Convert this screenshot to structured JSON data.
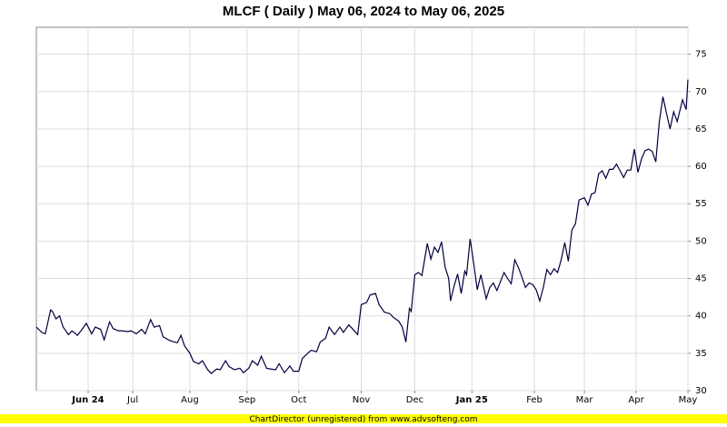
{
  "chart_data": {
    "type": "line",
    "title": "MLCF ( Daily ) May 06, 2024 to May 06, 2025",
    "footer": "ChartDirector (unregistered) from www.advsofteng.com",
    "color": "#000040",
    "grid": true,
    "x": [
      0,
      3,
      5,
      8,
      9,
      11,
      13,
      15,
      18,
      20,
      23,
      25,
      28,
      31,
      33,
      36,
      38,
      41,
      43,
      46,
      48,
      51,
      53,
      56,
      59,
      61,
      64,
      66,
      69,
      71,
      74,
      76,
      79,
      81,
      83,
      86,
      88,
      91,
      93,
      96,
      98,
      101,
      103,
      106,
      108,
      111,
      114,
      116,
      119,
      121,
      124,
      126,
      129,
      131,
      134,
      136,
      139,
      142,
      144,
      147,
      149,
      152,
      154,
      157,
      159,
      162,
      164,
      167,
      170,
      172,
      175,
      177,
      180,
      182,
      185,
      187,
      190,
      192,
      195,
      198,
      200,
      203,
      205,
      207,
      209,
      210,
      212,
      214,
      216,
      219,
      221,
      223,
      225,
      227,
      229,
      231,
      232,
      234,
      236,
      238,
      240,
      241,
      243,
      245,
      247,
      249,
      252,
      254,
      256,
      258,
      260,
      262,
      264,
      266,
      268,
      270,
      272,
      274,
      276,
      278,
      280,
      282,
      284,
      286,
      288,
      290,
      292,
      294,
      296,
      298,
      300,
      302,
      304,
      307,
      309,
      311,
      313,
      315,
      317,
      319,
      321,
      323,
      325,
      327,
      329,
      331,
      333,
      335,
      337,
      339,
      341,
      343,
      345,
      347,
      349,
      351,
      353,
      355,
      357,
      359,
      362,
      364,
      365
    ],
    "values": [
      38.5,
      37.8,
      37.6,
      40.8,
      40.6,
      39.6,
      40,
      38.5,
      37.5,
      38,
      37.4,
      38,
      39,
      37.6,
      38.5,
      38.2,
      36.8,
      39.2,
      38.3,
      38,
      38,
      37.9,
      38,
      37.6,
      38.2,
      37.6,
      39.5,
      38.5,
      38.7,
      37.2,
      36.8,
      36.6,
      36.4,
      37.4,
      36,
      35,
      33.9,
      33.6,
      34,
      32.8,
      32.3,
      32.9,
      32.8,
      34,
      33.2,
      32.8,
      33,
      32.4,
      33,
      34,
      33.4,
      34.6,
      33,
      32.9,
      32.8,
      33.6,
      32.4,
      33.3,
      32.6,
      32.6,
      34.3,
      35,
      35.4,
      35.2,
      36.5,
      37,
      38.5,
      37.5,
      38.5,
      37.8,
      38.8,
      38.3,
      37.5,
      41.5,
      41.8,
      42.8,
      43,
      41.5,
      40.5,
      40.3,
      39.8,
      39.3,
      38.5,
      36.5,
      41,
      40.6,
      45.5,
      45.8,
      45.4,
      49.7,
      47.6,
      49.2,
      48.5,
      49.9,
      46.5,
      45,
      42,
      44,
      45.6,
      43,
      46,
      45.5,
      50.3,
      47,
      43.5,
      45.5,
      42.3,
      43.8,
      44.4,
      43.4,
      44.6,
      45.8,
      45,
      44.3,
      47.5,
      46.5,
      45.2,
      43.8,
      44.4,
      44.2,
      43.5,
      42,
      43.8,
      46.2,
      45.5,
      46.3,
      45.8,
      47.5,
      49.8,
      47.3,
      51.5,
      52.3,
      55.5,
      55.8,
      54.8,
      56.3,
      56.5,
      59,
      59.4,
      58.4,
      59.6,
      59.6,
      60.3,
      59.4,
      58.5,
      59.5,
      59.5,
      62.3,
      59.2,
      61,
      62.1,
      62.3,
      62,
      60.6,
      66,
      69.3,
      67.1,
      65,
      67.3,
      66,
      68.9,
      67.6,
      71.6
    ],
    "xlim": [
      0,
      365
    ],
    "xticks": [
      {
        "value": 29,
        "label": "Jun 24"
      },
      {
        "value": 54,
        "label": "Jul"
      },
      {
        "value": 86,
        "label": "Aug"
      },
      {
        "value": 118,
        "label": "Sep"
      },
      {
        "value": 147,
        "label": "Oct"
      },
      {
        "value": 182,
        "label": "Nov"
      },
      {
        "value": 212,
        "label": "Dec"
      },
      {
        "value": 244,
        "label": "Jan 25"
      },
      {
        "value": 279,
        "label": "Feb"
      },
      {
        "value": 307,
        "label": "Mar"
      },
      {
        "value": 336,
        "label": "Apr"
      },
      {
        "value": 365,
        "label": "May"
      }
    ],
    "ylim": [
      30,
      78.6
    ],
    "yticks": [
      30,
      35,
      40,
      45,
      50,
      55,
      60,
      65,
      70,
      75
    ]
  }
}
